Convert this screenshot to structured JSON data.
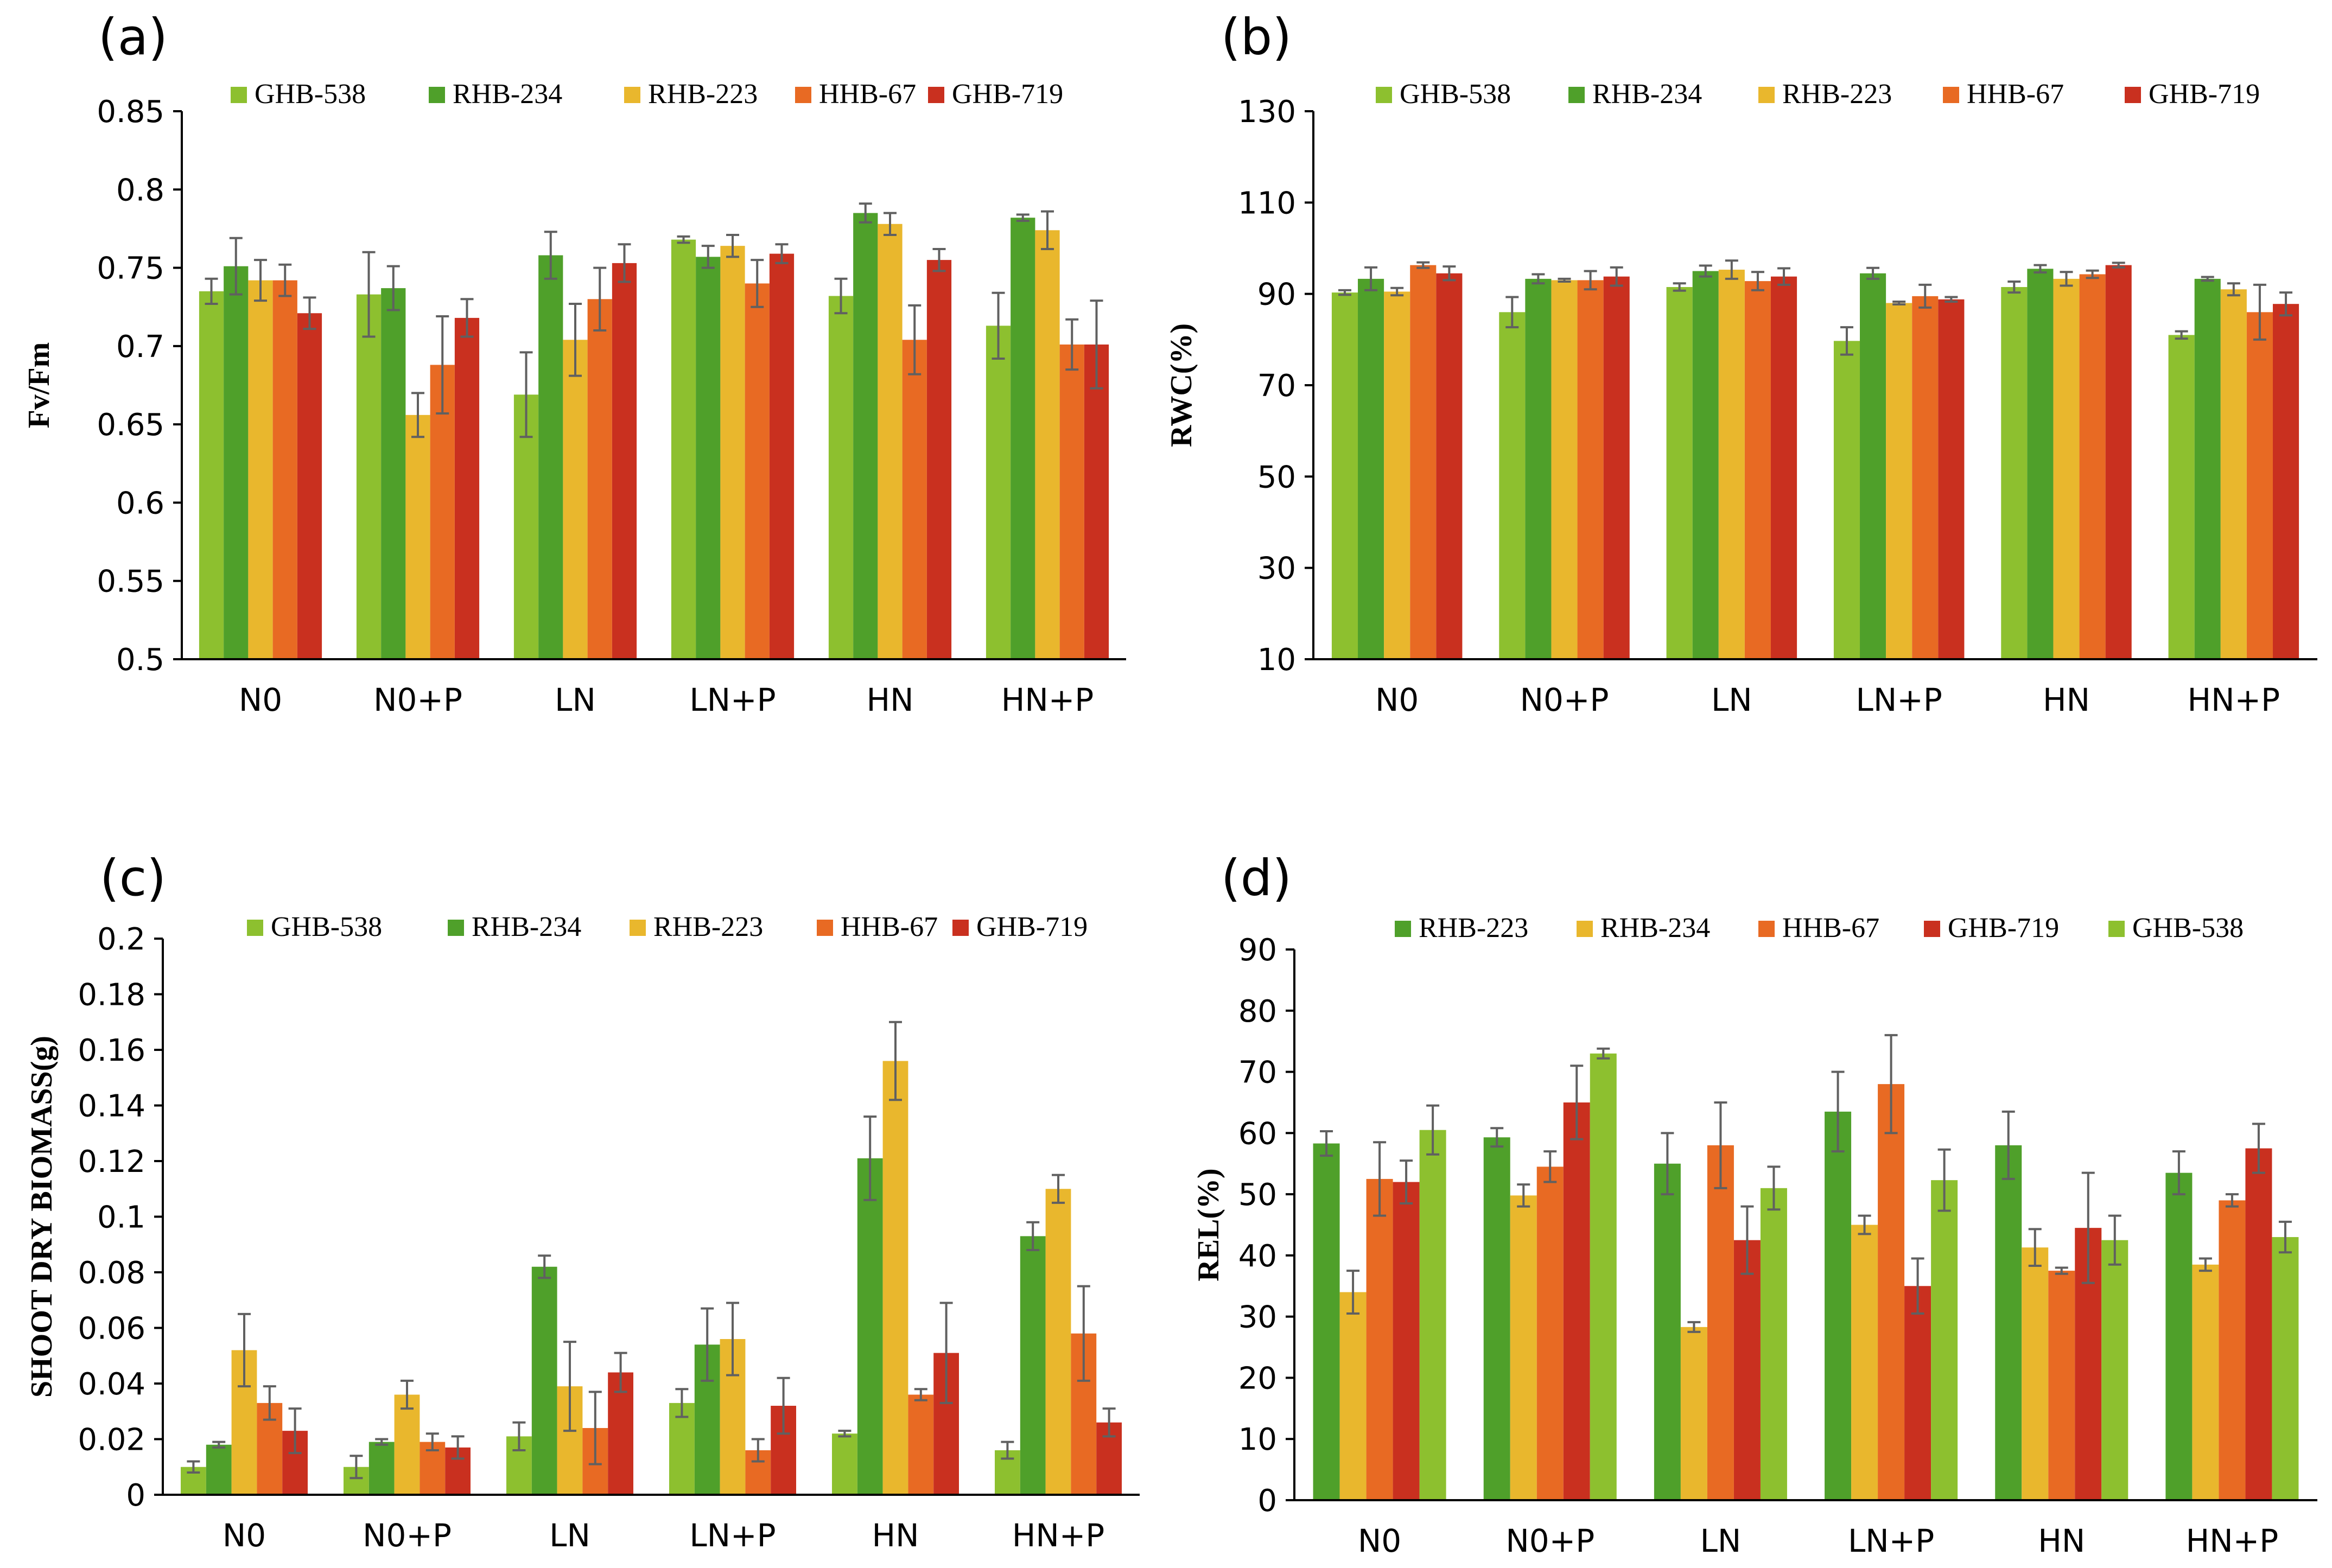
{
  "figure": {
    "colors": {
      "GHB-538": "#8DC02F",
      "RHB-234": "#4FA02A",
      "RHB-223": "#E9B72D",
      "HHB-67": "#E86A23",
      "GHB-719": "#C9301F",
      "axis": "#000000",
      "error_bar": "#606060"
    }
  },
  "chart_data": [
    {
      "id": "a",
      "type": "bar",
      "panel_label": "(a)",
      "title": "",
      "xlabel": "",
      "ylabel": "Fv/Fm",
      "ylim": [
        0.5,
        0.85
      ],
      "yticks": [
        0.5,
        0.55,
        0.6,
        0.65,
        0.7,
        0.75,
        0.8,
        0.85
      ],
      "ytick_labels": [
        "0.5",
        "0.55",
        "0.6",
        "0.65",
        "0.7",
        "0.75",
        "0.8",
        "0.85"
      ],
      "categories": [
        "N0",
        "N0+P",
        "LN",
        "LN+P",
        "HN",
        "HN+P"
      ],
      "legend_position": "top",
      "series": [
        {
          "name": "GHB-538",
          "color_key": "GHB-538",
          "values": [
            0.735,
            0.733,
            0.669,
            0.768,
            0.732,
            0.713
          ],
          "errors": [
            0.008,
            0.027,
            0.027,
            0.002,
            0.011,
            0.021
          ]
        },
        {
          "name": "RHB-234",
          "color_key": "RHB-234",
          "values": [
            0.751,
            0.737,
            0.758,
            0.757,
            0.785,
            0.782
          ],
          "errors": [
            0.018,
            0.014,
            0.015,
            0.007,
            0.006,
            0.002
          ]
        },
        {
          "name": "RHB-223",
          "color_key": "RHB-223",
          "values": [
            0.742,
            0.656,
            0.704,
            0.764,
            0.778,
            0.774
          ],
          "errors": [
            0.013,
            0.014,
            0.023,
            0.007,
            0.007,
            0.012
          ]
        },
        {
          "name": "HHB-67",
          "color_key": "HHB-67",
          "values": [
            0.742,
            0.688,
            0.73,
            0.74,
            0.704,
            0.701
          ],
          "errors": [
            0.01,
            0.031,
            0.02,
            0.015,
            0.022,
            0.016
          ]
        },
        {
          "name": "GHB-719",
          "color_key": "GHB-719",
          "values": [
            0.721,
            0.718,
            0.753,
            0.759,
            0.755,
            0.701
          ],
          "errors": [
            0.01,
            0.012,
            0.012,
            0.006,
            0.007,
            0.028
          ]
        }
      ]
    },
    {
      "id": "b",
      "type": "bar",
      "panel_label": "(b)",
      "title": "",
      "xlabel": "",
      "ylabel": "RWC(%)",
      "ylim": [
        10,
        130
      ],
      "yticks": [
        10,
        30,
        50,
        70,
        90,
        110,
        130
      ],
      "ytick_labels": [
        "10",
        "30",
        "50",
        "70",
        "90",
        "110",
        "130"
      ],
      "categories": [
        "N0",
        "N0+P",
        "LN",
        "LN+P",
        "HN",
        "HN+P"
      ],
      "legend_position": "top",
      "series": [
        {
          "name": "GHB-538",
          "color_key": "GHB-538",
          "values": [
            90.3,
            86.0,
            91.5,
            79.7,
            91.5,
            81.0
          ],
          "errors": [
            0.5,
            3.3,
            0.8,
            3.0,
            1.2,
            0.8
          ]
        },
        {
          "name": "RHB-234",
          "color_key": "RHB-234",
          "values": [
            93.3,
            93.3,
            95.0,
            94.5,
            95.5,
            93.3
          ],
          "errors": [
            2.5,
            1.0,
            1.2,
            1.2,
            0.8,
            0.4
          ]
        },
        {
          "name": "RHB-223",
          "color_key": "RHB-223",
          "values": [
            90.5,
            93.0,
            95.3,
            88.0,
            93.3,
            91.0
          ],
          "errors": [
            0.8,
            0.3,
            2.0,
            0.3,
            1.5,
            1.3
          ]
        },
        {
          "name": "HHB-67",
          "color_key": "HHB-67",
          "values": [
            96.3,
            93.0,
            92.8,
            89.5,
            94.3,
            86.0
          ],
          "errors": [
            0.6,
            2.0,
            2.0,
            2.5,
            0.8,
            6.0
          ]
        },
        {
          "name": "GHB-719",
          "color_key": "GHB-719",
          "values": [
            94.5,
            93.8,
            93.8,
            88.8,
            96.3,
            87.8
          ],
          "errors": [
            1.5,
            2.0,
            1.8,
            0.5,
            0.5,
            2.5
          ]
        }
      ]
    },
    {
      "id": "c",
      "type": "bar",
      "panel_label": "(c)",
      "title": "",
      "xlabel": "",
      "ylabel": "SHOOT DRY BIOMASS(g)",
      "ylim": [
        0,
        0.2
      ],
      "yticks": [
        0,
        0.02,
        0.04,
        0.06,
        0.08,
        0.1,
        0.12,
        0.14,
        0.16,
        0.18,
        0.2
      ],
      "ytick_labels": [
        "0",
        "0.02",
        "0.04",
        "0.06",
        "0.08",
        "0.1",
        "0.12",
        "0.14",
        "0.16",
        "0.18",
        "0.2"
      ],
      "categories": [
        "N0",
        "N0+P",
        "LN",
        "LN+P",
        "HN",
        "HN+P"
      ],
      "legend_position": "top",
      "series": [
        {
          "name": "GHB-538",
          "color_key": "GHB-538",
          "values": [
            0.01,
            0.01,
            0.021,
            0.033,
            0.022,
            0.016
          ],
          "errors": [
            0.002,
            0.004,
            0.005,
            0.005,
            0.001,
            0.003
          ]
        },
        {
          "name": "RHB-234",
          "color_key": "RHB-234",
          "values": [
            0.018,
            0.019,
            0.082,
            0.054,
            0.121,
            0.093
          ],
          "errors": [
            0.001,
            0.001,
            0.004,
            0.013,
            0.015,
            0.005
          ]
        },
        {
          "name": "RHB-223",
          "color_key": "RHB-223",
          "values": [
            0.052,
            0.036,
            0.039,
            0.056,
            0.156,
            0.11
          ],
          "errors": [
            0.013,
            0.005,
            0.016,
            0.013,
            0.014,
            0.005
          ]
        },
        {
          "name": "HHB-67",
          "color_key": "HHB-67",
          "values": [
            0.033,
            0.019,
            0.024,
            0.016,
            0.036,
            0.058
          ],
          "errors": [
            0.006,
            0.003,
            0.013,
            0.004,
            0.002,
            0.017
          ]
        },
        {
          "name": "GHB-719",
          "color_key": "GHB-719",
          "values": [
            0.023,
            0.017,
            0.044,
            0.032,
            0.051,
            0.026
          ],
          "errors": [
            0.008,
            0.004,
            0.007,
            0.01,
            0.018,
            0.005
          ]
        }
      ]
    },
    {
      "id": "d",
      "type": "bar",
      "panel_label": "(d)",
      "title": "",
      "xlabel": "",
      "ylabel": "REL(%)",
      "ylim": [
        0,
        90
      ],
      "yticks": [
        0,
        10,
        20,
        30,
        40,
        50,
        60,
        70,
        80,
        90
      ],
      "ytick_labels": [
        "0",
        "10",
        "20",
        "30",
        "40",
        "50",
        "60",
        "70",
        "80",
        "90"
      ],
      "categories": [
        "N0",
        "N0+P",
        "LN",
        "LN+P",
        "HN",
        "HN+P"
      ],
      "legend_position": "top",
      "series": [
        {
          "name": "RHB-223",
          "color_key": "RHB-234",
          "values": [
            58.3,
            59.3,
            55.0,
            63.5,
            58.0,
            53.5
          ],
          "errors": [
            2.0,
            1.5,
            5.0,
            6.5,
            5.5,
            3.5
          ]
        },
        {
          "name": "RHB-234",
          "color_key": "RHB-223",
          "values": [
            34.0,
            49.8,
            28.3,
            45.0,
            41.3,
            38.5
          ],
          "errors": [
            3.5,
            1.8,
            0.8,
            1.5,
            3.0,
            1.0
          ]
        },
        {
          "name": "HHB-67",
          "color_key": "HHB-67",
          "values": [
            52.5,
            54.5,
            58.0,
            68.0,
            37.5,
            49.0
          ],
          "errors": [
            6.0,
            2.5,
            7.0,
            8.0,
            0.5,
            1.0
          ]
        },
        {
          "name": "GHB-719",
          "color_key": "GHB-719",
          "values": [
            52.0,
            65.0,
            42.5,
            35.0,
            44.5,
            57.5
          ],
          "errors": [
            3.5,
            6.0,
            5.5,
            4.5,
            9.0,
            4.0
          ]
        },
        {
          "name": "GHB-538",
          "color_key": "GHB-538",
          "values": [
            60.5,
            73.0,
            51.0,
            52.3,
            42.5,
            43.0
          ],
          "errors": [
            4.0,
            0.8,
            3.5,
            5.0,
            4.0,
            2.5
          ]
        }
      ]
    }
  ]
}
